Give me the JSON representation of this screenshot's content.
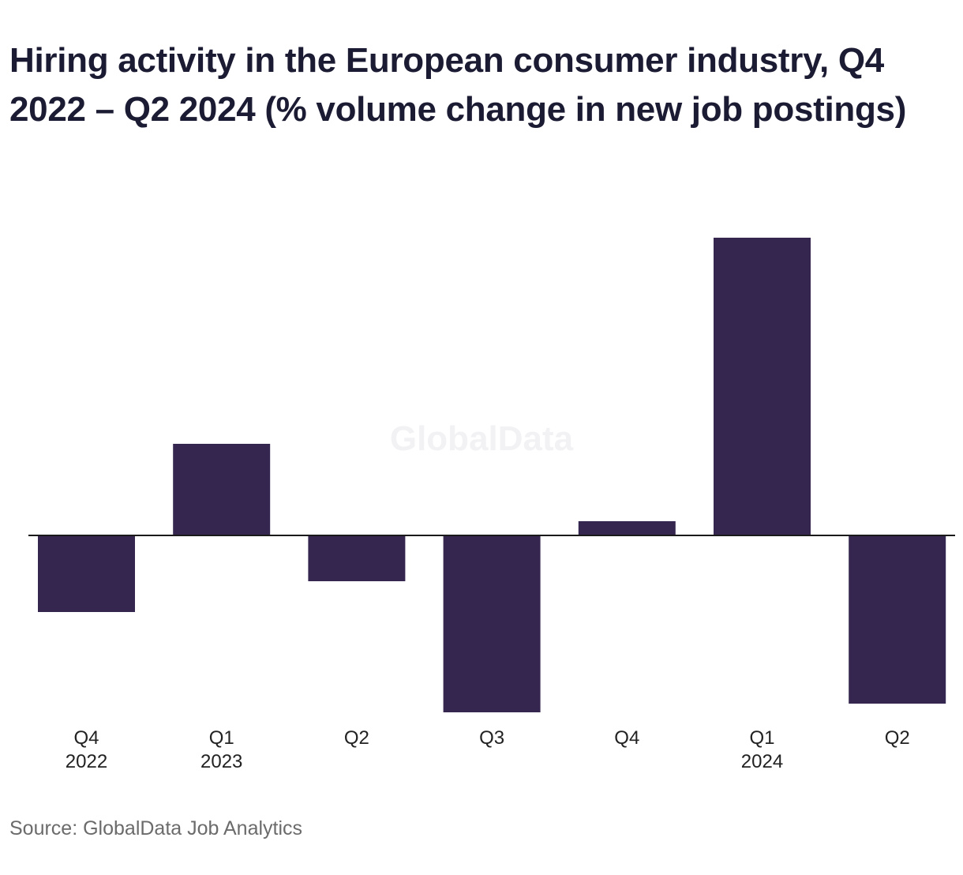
{
  "chart_data": {
    "type": "bar",
    "title": "Hiring activity in the European consumer industry, Q4 2022 – Q2 2024 (% volume change in new job postings)",
    "categories": [
      {
        "quarter": "Q4",
        "year": "2022"
      },
      {
        "quarter": "Q1",
        "year": "2023"
      },
      {
        "quarter": "Q2",
        "year": ""
      },
      {
        "quarter": "Q3",
        "year": ""
      },
      {
        "quarter": "Q4",
        "year": ""
      },
      {
        "quarter": "Q1",
        "year": "2024"
      },
      {
        "quarter": "Q2",
        "year": ""
      }
    ],
    "values": [
      -9.7,
      11.6,
      -5.8,
      -22.4,
      1.8,
      37.7,
      -21.3
    ],
    "ylim": [
      -23,
      40
    ],
    "bar_color": "#352650",
    "baseline_color": "#1a1a1a",
    "grid": false,
    "legend": "none",
    "watermark": "GlobalData",
    "source": "Source: GlobalData Job Analytics"
  }
}
